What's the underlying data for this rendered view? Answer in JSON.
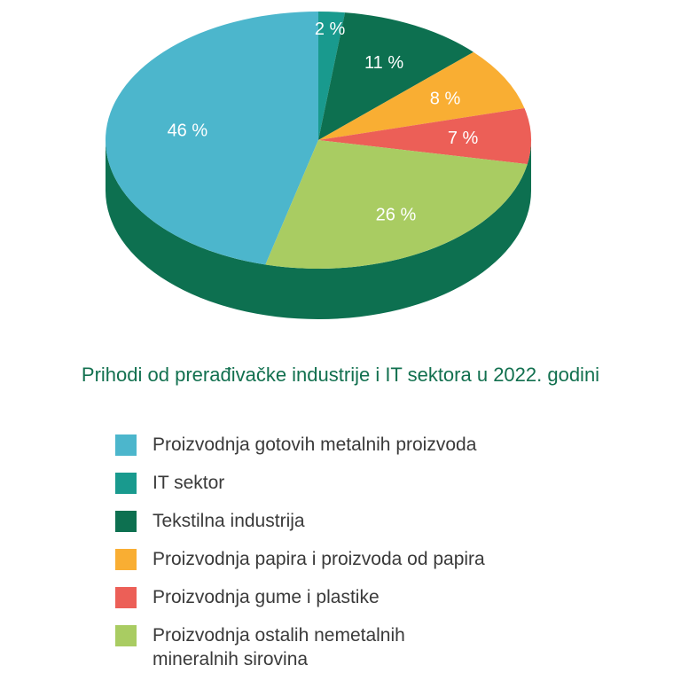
{
  "chart_data": {
    "type": "pie",
    "title": "Prihodi od prerađivačke industrije i IT sektora u 2022. godini",
    "slices": [
      {
        "label": "Proizvodnja gotovih metalnih proizvoda",
        "value": 46,
        "display": "46 %",
        "color": "#4cb6cc"
      },
      {
        "label": "IT sektor",
        "value": 2,
        "display": "2 %",
        "color": "#199a8e"
      },
      {
        "label": "Tekstilna industrija",
        "value": 11,
        "display": "11 %",
        "color": "#0d7050"
      },
      {
        "label": "Proizvodnja papira i proizvoda od papira",
        "value": 8,
        "display": "8 %",
        "color": "#f9ae33"
      },
      {
        "label": "Proizvodnja gume i plastike",
        "value": 7,
        "display": "7 %",
        "color": "#ec5f57"
      },
      {
        "label": "Proizvodnja ostalih nemetalnih mineralnih sirovina",
        "value": 26,
        "display": "26 %",
        "color": "#a9cc62"
      }
    ],
    "side_color": "#0d7050",
    "legend_position": "bottom"
  },
  "legend": {
    "items": [
      {
        "label": "Proizvodnja gotovih metalnih proizvoda",
        "color": "#4cb6cc"
      },
      {
        "label": "IT sektor",
        "color": "#199a8e"
      },
      {
        "label": "Tekstilna industrija",
        "color": "#0d7050"
      },
      {
        "label": "Proizvodnja papira i proizvoda od papira",
        "color": "#f9ae33"
      },
      {
        "label": "Proizvodnja gume i plastike",
        "color": "#ec5f57"
      },
      {
        "label": "Proizvodnja ostalih nemetalnih",
        "label_line2": "mineralnih sirovina",
        "color": "#a9cc62"
      }
    ]
  }
}
